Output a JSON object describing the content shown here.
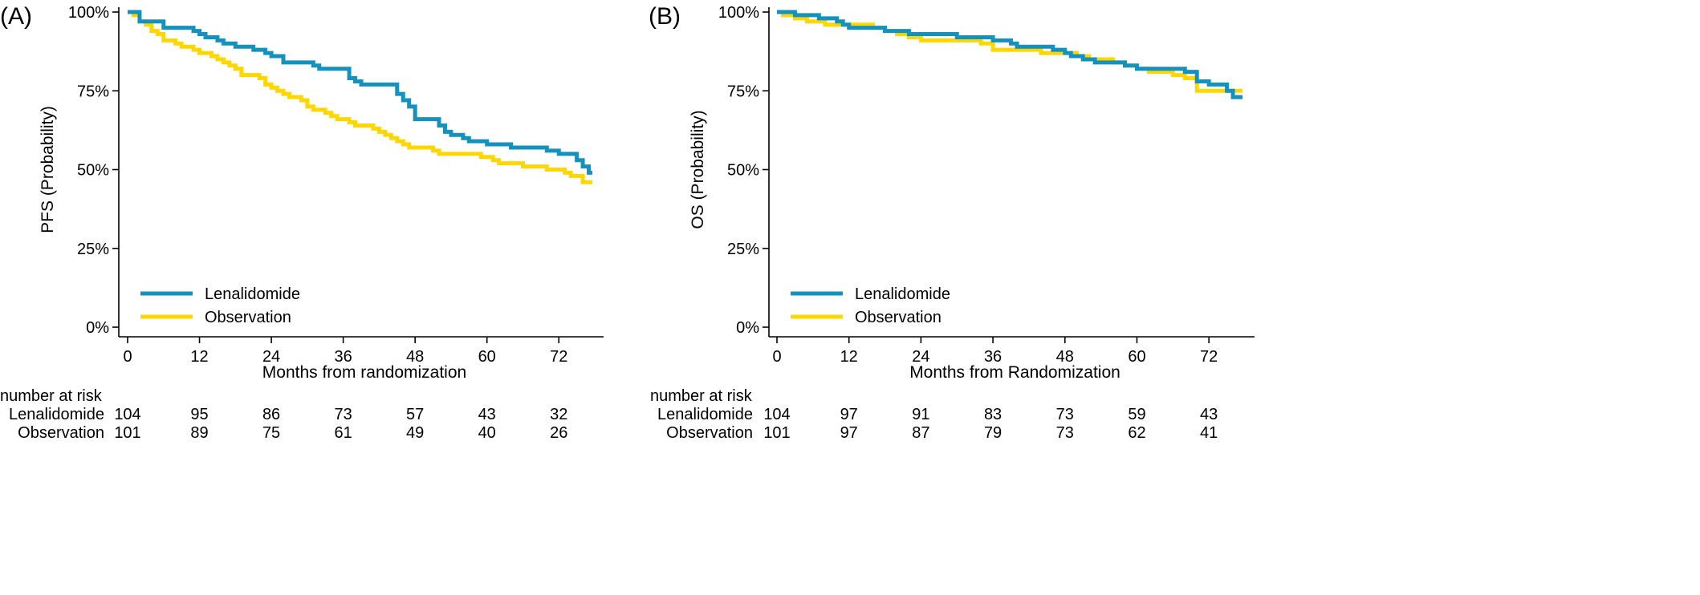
{
  "colors": {
    "lenalidomide": "#1591be",
    "observation": "#ffd700",
    "axis": "#000000"
  },
  "chart_data": [
    {
      "panel_label": "(A)",
      "type": "line",
      "step": true,
      "ylabel": "PFS (Probability)",
      "xlabel": "Months from randomization",
      "xlim": [
        0,
        78
      ],
      "ylim": [
        0,
        100
      ],
      "x_ticks": [
        0,
        12,
        24,
        36,
        48,
        60,
        72
      ],
      "y_ticks": [
        0,
        25,
        50,
        75,
        100
      ],
      "y_tick_labels": [
        "0%",
        "25%",
        "50%",
        "75%",
        "100%"
      ],
      "grid": false,
      "legend_position": "bottom-left",
      "series": [
        {
          "name": "Lenalidomide",
          "color_key": "lenalidomide",
          "x": [
            0,
            2,
            3,
            4,
            6,
            7,
            8,
            9,
            10,
            11,
            12,
            13,
            14,
            15,
            16,
            17,
            18,
            19,
            20,
            21,
            22,
            23,
            24,
            25,
            26,
            27,
            28,
            29,
            30,
            31,
            32,
            33,
            34,
            35,
            36,
            37,
            38,
            39,
            40,
            41,
            42,
            43,
            44,
            45,
            46,
            47,
            48,
            49,
            50,
            51,
            52,
            53,
            54,
            55,
            56,
            57,
            58,
            59,
            60,
            61,
            62,
            63,
            64,
            65,
            66,
            67,
            68,
            69,
            70,
            71,
            72,
            73,
            74,
            75,
            76,
            77
          ],
          "y": [
            100,
            97,
            97,
            97,
            95,
            95,
            95,
            95,
            95,
            94,
            93,
            92,
            92,
            91,
            90,
            90,
            89,
            89,
            89,
            88,
            88,
            87,
            86,
            86,
            84,
            84,
            84,
            84,
            84,
            83,
            82,
            82,
            82,
            82,
            82,
            79,
            78,
            77,
            77,
            77,
            77,
            77,
            77,
            74,
            72,
            70,
            66,
            66,
            66,
            66,
            64,
            62,
            61,
            61,
            60,
            59,
            59,
            59,
            58,
            58,
            58,
            58,
            57,
            57,
            57,
            57,
            57,
            57,
            56,
            56,
            55,
            55,
            55,
            53,
            51,
            49
          ]
        },
        {
          "name": "Observation",
          "color_key": "observation",
          "x": [
            0,
            1,
            2,
            3,
            4,
            5,
            6,
            7,
            8,
            9,
            10,
            11,
            12,
            13,
            14,
            15,
            16,
            17,
            18,
            19,
            20,
            21,
            22,
            23,
            24,
            25,
            26,
            27,
            28,
            29,
            30,
            31,
            32,
            33,
            34,
            35,
            36,
            37,
            38,
            39,
            40,
            41,
            42,
            43,
            44,
            45,
            46,
            47,
            48,
            49,
            50,
            51,
            52,
            53,
            54,
            55,
            56,
            57,
            58,
            59,
            60,
            61,
            62,
            63,
            64,
            65,
            66,
            67,
            68,
            69,
            70,
            71,
            72,
            73,
            74,
            75,
            76,
            77
          ],
          "y": [
            100,
            99,
            97,
            96,
            94,
            93,
            91,
            91,
            90,
            89,
            89,
            88,
            87,
            87,
            86,
            85,
            84,
            83,
            82,
            80,
            80,
            80,
            79,
            77,
            76,
            75,
            74,
            73,
            73,
            72,
            70,
            69,
            69,
            68,
            67,
            66,
            66,
            65,
            64,
            64,
            64,
            63,
            62,
            61,
            60,
            59,
            58,
            57,
            57,
            57,
            57,
            56,
            55,
            55,
            55,
            55,
            55,
            55,
            55,
            54,
            54,
            53,
            52,
            52,
            52,
            52,
            51,
            51,
            51,
            51,
            50,
            50,
            50,
            49,
            48,
            48,
            46,
            46
          ]
        }
      ],
      "risk_table": {
        "title": "number at risk",
        "rows": [
          {
            "label": "Lenalidomide",
            "values": [
              "104",
              "95",
              "86",
              "73",
              "57",
              "43",
              "32"
            ]
          },
          {
            "label": "Observation",
            "values": [
              "101",
              "89",
              "75",
              "61",
              "49",
              "40",
              "26"
            ]
          }
        ]
      }
    },
    {
      "panel_label": "(B)",
      "type": "line",
      "step": true,
      "ylabel": "OS (Probability)",
      "xlabel": "Months from Randomization",
      "xlim": [
        0,
        78
      ],
      "ylim": [
        0,
        100
      ],
      "x_ticks": [
        0,
        12,
        24,
        36,
        48,
        60,
        72
      ],
      "y_ticks": [
        0,
        25,
        50,
        75,
        100
      ],
      "y_tick_labels": [
        "0%",
        "25%",
        "50%",
        "75%",
        "100%"
      ],
      "grid": false,
      "legend_position": "bottom-left",
      "series": [
        {
          "name": "Lenalidomide",
          "color_key": "lenalidomide",
          "x": [
            0,
            2,
            3,
            4,
            5,
            6,
            7,
            8,
            9,
            10,
            11,
            12,
            14,
            16,
            18,
            20,
            22,
            24,
            30,
            34,
            36,
            38,
            39,
            40,
            41,
            42,
            44,
            46,
            48,
            49,
            50,
            51,
            52,
            53,
            54,
            55,
            56,
            58,
            60,
            62,
            64,
            66,
            68,
            70,
            72,
            74,
            75,
            76,
            77
          ],
          "y": [
            100,
            100,
            99,
            99,
            99,
            99,
            98,
            98,
            98,
            97,
            96,
            95,
            95,
            95,
            94,
            94,
            93,
            93,
            92,
            92,
            91,
            91,
            90,
            89,
            89,
            89,
            89,
            88,
            87,
            86,
            86,
            85,
            85,
            84,
            84,
            84,
            84,
            83,
            82,
            82,
            82,
            82,
            81,
            78,
            77,
            77,
            75,
            73,
            73
          ]
        },
        {
          "name": "Observation",
          "color_key": "observation",
          "x": [
            0,
            1,
            2,
            3,
            4,
            5,
            6,
            7,
            8,
            9,
            10,
            11,
            12,
            14,
            16,
            18,
            20,
            22,
            24,
            30,
            34,
            36,
            42,
            44,
            46,
            48,
            50,
            52,
            54,
            56,
            58,
            60,
            62,
            64,
            66,
            68,
            70,
            72,
            74,
            76,
            77
          ],
          "y": [
            100,
            99,
            99,
            98,
            98,
            97,
            97,
            97,
            96,
            96,
            96,
            96,
            96,
            96,
            95,
            94,
            93,
            92,
            91,
            91,
            90,
            88,
            88,
            87,
            87,
            87,
            86,
            85,
            85,
            84,
            83,
            82,
            81,
            81,
            80,
            79,
            75,
            75,
            75,
            75,
            75
          ]
        }
      ],
      "risk_table": {
        "title": "number at risk",
        "rows": [
          {
            "label": "Lenalidomide",
            "values": [
              "104",
              "97",
              "91",
              "83",
              "73",
              "59",
              "43"
            ]
          },
          {
            "label": "Observation",
            "values": [
              "101",
              "97",
              "87",
              "79",
              "73",
              "62",
              "41"
            ]
          }
        ]
      }
    }
  ]
}
